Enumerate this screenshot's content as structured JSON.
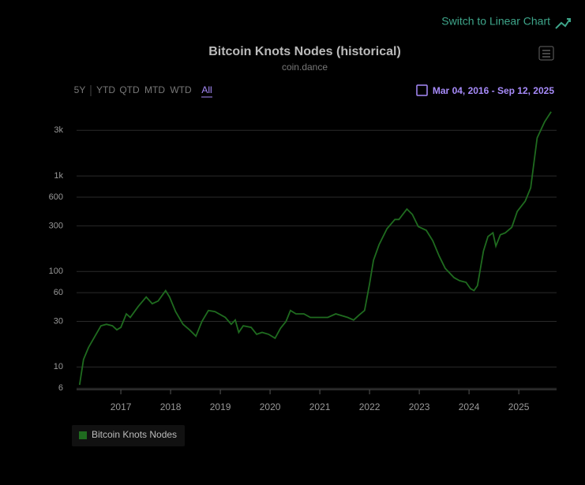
{
  "switch_link": "Switch to Linear Chart",
  "range_buttons": [
    "5Y",
    "YTD",
    "QTD",
    "MTD",
    "WTD",
    "All"
  ],
  "date_range": "Mar 04, 2016 - Sep 12, 2025",
  "chart_data": {
    "type": "line",
    "title": "Bitcoin Knots Nodes (historical)",
    "subtitle": "coin.dance",
    "log_scale": true,
    "grid": true,
    "xlim": [
      2016.11,
      2025.76
    ],
    "xticks": [
      2017,
      2018,
      2019,
      2020,
      2021,
      2022,
      2023,
      2024,
      2025
    ],
    "ylim": [
      5.8,
      4850
    ],
    "yticks": [
      6,
      10,
      30,
      60,
      100,
      300,
      600,
      {
        "value": 1000,
        "label": "1k"
      },
      {
        "value": 3000,
        "label": "3k"
      }
    ],
    "x": [
      2016.17,
      2016.25,
      2016.35,
      2016.48,
      2016.6,
      2016.71,
      2016.83,
      2016.92,
      2017.0,
      2017.11,
      2017.19,
      2017.35,
      2017.51,
      2017.63,
      2017.75,
      2017.9,
      2017.98,
      2018.1,
      2018.25,
      2018.38,
      2018.51,
      2018.63,
      2018.76,
      2018.89,
      2019.1,
      2019.22,
      2019.3,
      2019.37,
      2019.46,
      2019.62,
      2019.73,
      2019.84,
      2019.97,
      2020.1,
      2020.21,
      2020.32,
      2020.41,
      2020.52,
      2020.68,
      2020.81,
      2021.0,
      2021.16,
      2021.32,
      2021.56,
      2021.68,
      2021.79,
      2021.9,
      2022.0,
      2022.08,
      2022.19,
      2022.35,
      2022.51,
      2022.59,
      2022.75,
      2022.86,
      2022.98,
      2023.14,
      2023.27,
      2023.4,
      2023.52,
      2023.7,
      2023.81,
      2023.94,
      2024.03,
      2024.1,
      2024.17,
      2024.29,
      2024.38,
      2024.48,
      2024.54,
      2024.63,
      2024.73,
      2024.86,
      2024.97,
      2025.13,
      2025.24,
      2025.37,
      2025.52,
      2025.65
    ],
    "series": [
      {
        "name": "Bitcoin Knots Nodes",
        "color": "#1f6b1f",
        "values": [
          6.5,
          12,
          16,
          21,
          27,
          28,
          27,
          24.5,
          26,
          36,
          33,
          43,
          54,
          46,
          49,
          63,
          54,
          38,
          28,
          24.5,
          21,
          30,
          39,
          38,
          33,
          28,
          31,
          23,
          27,
          26,
          22,
          23,
          22,
          20,
          25.4,
          30,
          39,
          36,
          36,
          33,
          33,
          33,
          36,
          33,
          31,
          35,
          39,
          74,
          131,
          190,
          280,
          350,
          350,
          450,
          395,
          295,
          270,
          210,
          145,
          108,
          86,
          80,
          77,
          66,
          63,
          71,
          164,
          232,
          254,
          184,
          242,
          254,
          290,
          425,
          545,
          750,
          2500,
          3690,
          4700
        ]
      }
    ]
  }
}
